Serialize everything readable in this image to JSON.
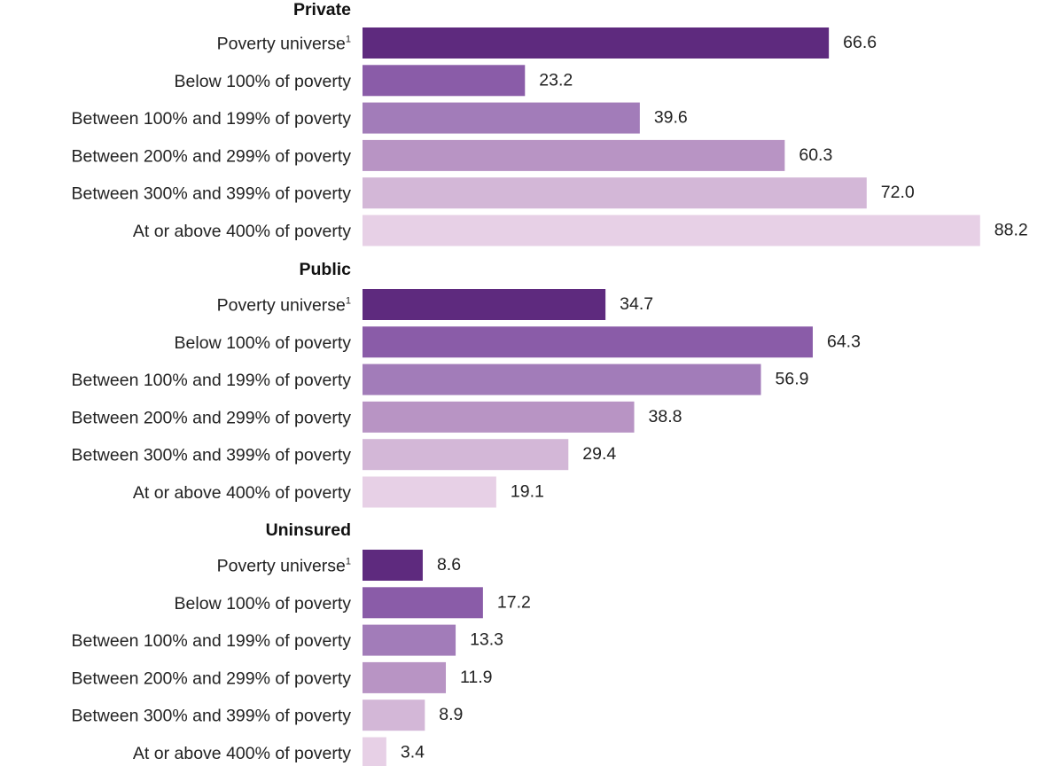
{
  "chart_data": {
    "type": "bar",
    "orientation": "horizontal",
    "xlim": [
      0,
      100
    ],
    "categories": [
      "Poverty universe",
      "Below 100% of poverty",
      "Between 100% and 199% of poverty",
      "Between 200% and 299% of poverty",
      "Between 300% and 399% of poverty",
      "At or above 400% of poverty"
    ],
    "category_footnotes": [
      "1",
      "",
      "",
      "",
      "",
      ""
    ],
    "colors": [
      "#5e2a7e",
      "#8a5ca8",
      "#a27cb9",
      "#b894c4",
      "#d3b7d7",
      "#e7d0e6"
    ],
    "groups": [
      {
        "name": "Private",
        "values": [
          66.6,
          23.2,
          39.6,
          60.3,
          72.0,
          88.2
        ],
        "labels": [
          "66.6",
          "23.2",
          "39.6",
          "60.3",
          "72.0",
          "88.2"
        ]
      },
      {
        "name": "Public",
        "values": [
          34.7,
          64.3,
          56.9,
          38.8,
          29.4,
          19.1
        ],
        "labels": [
          "34.7",
          "64.3",
          "56.9",
          "38.8",
          "29.4",
          "19.1"
        ]
      },
      {
        "name": "Uninsured",
        "values": [
          8.6,
          17.2,
          13.3,
          11.9,
          8.9,
          3.4
        ],
        "labels": [
          "8.6",
          "17.2",
          "13.3",
          "11.9",
          "8.9",
          "3.4"
        ]
      }
    ]
  }
}
